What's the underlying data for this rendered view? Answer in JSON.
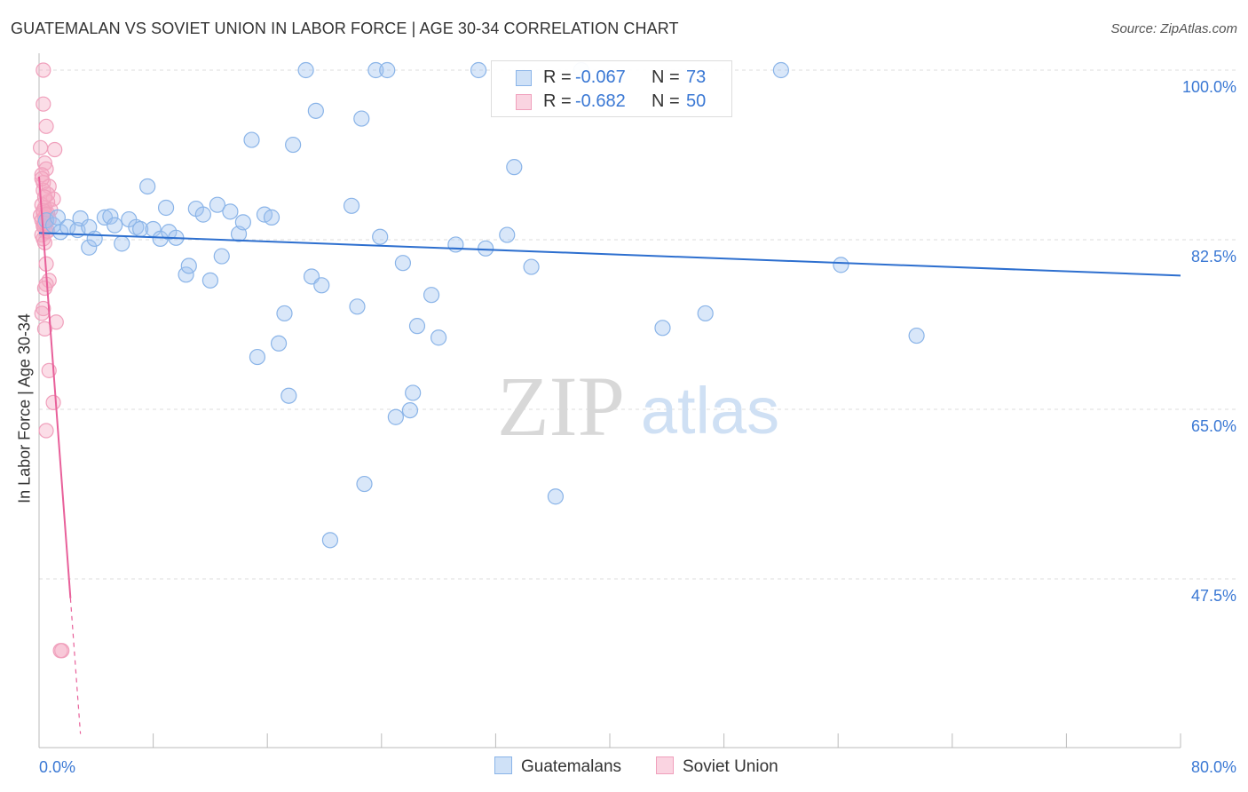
{
  "title": "GUATEMALAN VS SOVIET UNION IN LABOR FORCE | AGE 30-34 CORRELATION CHART",
  "source": "Source: ZipAtlas.com",
  "watermark": {
    "zip": "ZIP",
    "atlas": "atlas"
  },
  "legend_top": [
    {
      "r_label": "R =",
      "r_value": "-0.067",
      "n_label": "N =",
      "n_value": "73"
    },
    {
      "r_label": "R =",
      "r_value": "-0.682",
      "n_label": "N =",
      "n_value": "50"
    }
  ],
  "legend_bottom": [
    {
      "label": "Guatemalans"
    },
    {
      "label": "Soviet Union"
    }
  ],
  "colors": {
    "guatemalans_fill": "rgba(160,196,240,0.40)",
    "guatemalans_stroke": "#8ab4e8",
    "guatemalans_line": "#2d6fcf",
    "soviet_fill": "rgba(246,170,196,0.40)",
    "soviet_stroke": "#f0a0bc",
    "soviet_line": "#e8609a",
    "tick_label": "#3a78d4",
    "grid": "#dddddd"
  },
  "chart_data": {
    "type": "scatter",
    "title": "GUATEMALAN VS SOVIET UNION IN LABOR FORCE | AGE 30-34 CORRELATION CHART",
    "xlabel": "",
    "ylabel": "In Labor Force | Age 30-34",
    "xlim": [
      0,
      80
    ],
    "ylim": [
      30,
      101.5
    ],
    "x_tick_labels": [
      "0.0%",
      "80.0%"
    ],
    "y_ticks": [
      47.5,
      65.0,
      82.5,
      100.0
    ],
    "y_tick_labels": [
      "47.5%",
      "65.0%",
      "82.5%",
      "100.0%"
    ],
    "grid": true,
    "legend_placement": "bottom-center",
    "series": [
      {
        "name": "Guatemalans",
        "points": [
          [
            0.5,
            84.5
          ],
          [
            1.0,
            84.0
          ],
          [
            1.3,
            84.8
          ],
          [
            1.5,
            83.3
          ],
          [
            2.0,
            83.8
          ],
          [
            2.7,
            83.5
          ],
          [
            2.9,
            84.7
          ],
          [
            3.5,
            83.8
          ],
          [
            4.6,
            84.8
          ],
          [
            5.0,
            84.9
          ],
          [
            3.5,
            81.7
          ],
          [
            3.9,
            82.6
          ],
          [
            5.3,
            84.0
          ],
          [
            5.8,
            82.1
          ],
          [
            6.3,
            84.6
          ],
          [
            6.8,
            83.8
          ],
          [
            7.1,
            83.6
          ],
          [
            7.6,
            88.0
          ],
          [
            8.0,
            83.6
          ],
          [
            8.5,
            82.6
          ],
          [
            8.9,
            85.8
          ],
          [
            9.1,
            83.3
          ],
          [
            9.6,
            82.7
          ],
          [
            10.3,
            78.9
          ],
          [
            10.5,
            79.8
          ],
          [
            11.0,
            85.7
          ],
          [
            11.5,
            85.1
          ],
          [
            12.0,
            78.3
          ],
          [
            12.5,
            86.1
          ],
          [
            12.8,
            80.8
          ],
          [
            13.4,
            85.4
          ],
          [
            14.0,
            83.1
          ],
          [
            14.3,
            84.3
          ],
          [
            14.9,
            92.8
          ],
          [
            15.3,
            70.4
          ],
          [
            15.8,
            85.1
          ],
          [
            16.3,
            84.8
          ],
          [
            16.8,
            71.8
          ],
          [
            17.2,
            74.9
          ],
          [
            17.5,
            66.4
          ],
          [
            17.8,
            92.3
          ],
          [
            18.7,
            100.0
          ],
          [
            19.1,
            78.7
          ],
          [
            19.4,
            95.8
          ],
          [
            19.8,
            77.8
          ],
          [
            20.4,
            51.5
          ],
          [
            21.9,
            86.0
          ],
          [
            22.3,
            75.6
          ],
          [
            22.6,
            95.0
          ],
          [
            22.8,
            57.3
          ],
          [
            23.6,
            100.0
          ],
          [
            23.9,
            82.8
          ],
          [
            24.4,
            100.0
          ],
          [
            25.0,
            64.2
          ],
          [
            25.5,
            80.1
          ],
          [
            26.0,
            64.9
          ],
          [
            26.2,
            66.7
          ],
          [
            26.5,
            73.6
          ],
          [
            27.5,
            76.8
          ],
          [
            28.0,
            72.4
          ],
          [
            29.2,
            82.0
          ],
          [
            30.8,
            100.0
          ],
          [
            31.3,
            81.6
          ],
          [
            32.8,
            83.0
          ],
          [
            33.3,
            90.0
          ],
          [
            34.5,
            79.7
          ],
          [
            36.2,
            56.0
          ],
          [
            38.0,
            100.0
          ],
          [
            43.7,
            73.4
          ],
          [
            46.7,
            74.9
          ],
          [
            52.0,
            100.0
          ],
          [
            56.2,
            79.9
          ],
          [
            61.5,
            72.6
          ]
        ],
        "trend": {
          "x": [
            0,
            80
          ],
          "y": [
            83.2,
            78.8
          ]
        }
      },
      {
        "name": "Soviet Union",
        "points": [
          [
            0.3,
            100.0
          ],
          [
            0.3,
            96.5
          ],
          [
            0.5,
            94.2
          ],
          [
            0.1,
            92.0
          ],
          [
            1.1,
            91.8
          ],
          [
            0.4,
            90.4
          ],
          [
            0.5,
            89.8
          ],
          [
            0.2,
            89.2
          ],
          [
            0.3,
            88.4
          ],
          [
            0.7,
            88.0
          ],
          [
            0.3,
            87.6
          ],
          [
            1.0,
            86.7
          ],
          [
            0.6,
            86.4
          ],
          [
            0.2,
            86.1
          ],
          [
            0.4,
            85.8
          ],
          [
            0.8,
            85.6
          ],
          [
            0.3,
            85.3
          ],
          [
            0.6,
            85.2
          ],
          [
            0.1,
            85.0
          ],
          [
            0.4,
            84.8
          ],
          [
            0.2,
            84.5
          ],
          [
            0.5,
            84.3
          ],
          [
            0.3,
            84.0
          ],
          [
            0.4,
            83.7
          ],
          [
            0.5,
            83.3
          ],
          [
            0.2,
            83.0
          ],
          [
            0.3,
            82.6
          ],
          [
            0.4,
            82.2
          ],
          [
            0.5,
            80.0
          ],
          [
            0.7,
            78.3
          ],
          [
            0.5,
            77.9
          ],
          [
            0.4,
            77.5
          ],
          [
            0.3,
            75.4
          ],
          [
            0.2,
            74.9
          ],
          [
            1.2,
            74.0
          ],
          [
            0.4,
            73.3
          ],
          [
            0.7,
            69.0
          ],
          [
            1.0,
            65.7
          ],
          [
            0.5,
            62.8
          ],
          [
            1.5,
            40.1
          ],
          [
            1.6,
            40.1
          ],
          [
            0.3,
            85.5
          ],
          [
            0.6,
            87.2
          ],
          [
            0.2,
            88.8
          ],
          [
            0.4,
            86.9
          ],
          [
            0.5,
            85.1
          ],
          [
            0.7,
            84.6
          ],
          [
            0.3,
            83.9
          ],
          [
            0.6,
            83.4
          ],
          [
            0.4,
            84.2
          ]
        ],
        "trend": {
          "x": [
            0,
            2.2
          ],
          "y": [
            89.0,
            45.5
          ]
        },
        "trend_dashed": {
          "x": [
            2.2,
            2.9
          ],
          "y": [
            45.5,
            31.5
          ]
        }
      }
    ]
  }
}
